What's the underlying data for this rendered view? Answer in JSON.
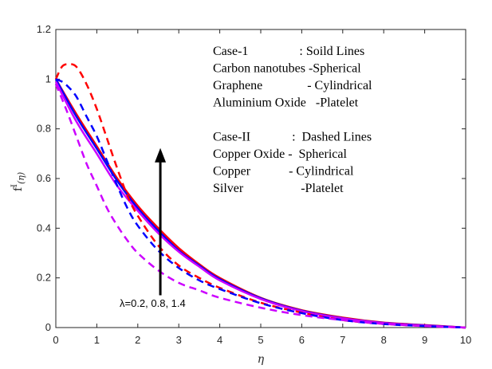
{
  "chart_data": {
    "type": "line",
    "xlabel": "η",
    "ylabel_main": "f",
    "ylabel_sup": "I",
    "ylabel_sub": "(η)",
    "xlim": [
      0,
      10
    ],
    "ylim": [
      0,
      1.2
    ],
    "xticks": [
      "0",
      "1",
      "2",
      "3",
      "4",
      "5",
      "6",
      "7",
      "8",
      "9",
      "10"
    ],
    "yticks": [
      "0",
      "0.2",
      "0.4",
      "0.6",
      "0.8",
      "1",
      "1.2"
    ],
    "legend_lines": [
      "Case-1                : Soild Lines",
      "Carbon nanotubes -Spherical",
      "Graphene              - Cylindrical",
      "Aluminium Oxide   -Platelet",
      "",
      "Case-II             :  Dashed Lines",
      "Copper Oxide -  Spherical",
      "Copper            - Cylindrical",
      "Silver                  -Platelet"
    ],
    "annotation": "λ=0.2, 0.8, 1.4",
    "arrow": {
      "from": [
        2.55,
        0.13
      ],
      "to": [
        2.55,
        0.71
      ]
    },
    "series": [
      {
        "name": "solid-red",
        "style": "solid",
        "color": "#ff0000",
        "x": [
          0,
          0.5,
          1,
          1.5,
          2,
          2.5,
          3,
          3.5,
          4,
          5,
          6,
          7,
          8,
          9,
          10
        ],
        "y": [
          1.0,
          0.86,
          0.73,
          0.6,
          0.49,
          0.4,
          0.32,
          0.255,
          0.2,
          0.12,
          0.07,
          0.04,
          0.02,
          0.01,
          0.0
        ]
      },
      {
        "name": "solid-blue",
        "style": "solid",
        "color": "#0000ff",
        "x": [
          0,
          0.5,
          1,
          1.5,
          2,
          2.5,
          3,
          3.5,
          4,
          5,
          6,
          7,
          8,
          9,
          10
        ],
        "y": [
          1.0,
          0.85,
          0.72,
          0.59,
          0.48,
          0.39,
          0.31,
          0.25,
          0.195,
          0.118,
          0.068,
          0.038,
          0.019,
          0.009,
          0.0
        ]
      },
      {
        "name": "solid-magenta",
        "style": "solid",
        "color": "#cc00ff",
        "x": [
          0,
          0.5,
          1,
          1.5,
          2,
          2.5,
          3,
          3.5,
          4,
          5,
          6,
          7,
          8,
          9,
          10
        ],
        "y": [
          0.99,
          0.83,
          0.7,
          0.57,
          0.47,
          0.38,
          0.305,
          0.245,
          0.19,
          0.115,
          0.066,
          0.037,
          0.018,
          0.008,
          0.0
        ]
      },
      {
        "name": "dashed-red",
        "style": "dashed",
        "color": "#ff0000",
        "x": [
          0,
          0.15,
          0.3,
          0.5,
          0.75,
          1,
          1.25,
          1.5,
          1.75,
          2,
          2.5,
          3,
          3.5,
          4,
          5,
          6,
          7,
          8,
          9,
          10
        ],
        "y": [
          1.0,
          1.05,
          1.06,
          1.05,
          0.98,
          0.88,
          0.76,
          0.64,
          0.53,
          0.45,
          0.33,
          0.25,
          0.2,
          0.16,
          0.1,
          0.06,
          0.03,
          0.015,
          0.006,
          0.0
        ]
      },
      {
        "name": "dashed-blue",
        "style": "dashed",
        "color": "#0000ff",
        "x": [
          0,
          0.15,
          0.3,
          0.5,
          0.75,
          1,
          1.25,
          1.5,
          1.75,
          2,
          2.5,
          3,
          3.5,
          4,
          5,
          6,
          7,
          8,
          9,
          10
        ],
        "y": [
          1.0,
          0.99,
          0.97,
          0.93,
          0.85,
          0.77,
          0.67,
          0.57,
          0.48,
          0.41,
          0.31,
          0.24,
          0.19,
          0.155,
          0.098,
          0.058,
          0.03,
          0.014,
          0.006,
          0.0
        ]
      },
      {
        "name": "dashed-magenta",
        "style": "dashed",
        "color": "#cc00ff",
        "x": [
          0,
          0.25,
          0.5,
          0.75,
          1,
          1.25,
          1.5,
          1.75,
          2,
          2.5,
          3,
          3.5,
          4,
          5,
          6,
          7,
          8,
          9,
          10
        ],
        "y": [
          0.98,
          0.88,
          0.77,
          0.66,
          0.57,
          0.48,
          0.41,
          0.35,
          0.3,
          0.23,
          0.18,
          0.15,
          0.12,
          0.08,
          0.05,
          0.03,
          0.015,
          0.006,
          0.0
        ]
      }
    ]
  }
}
